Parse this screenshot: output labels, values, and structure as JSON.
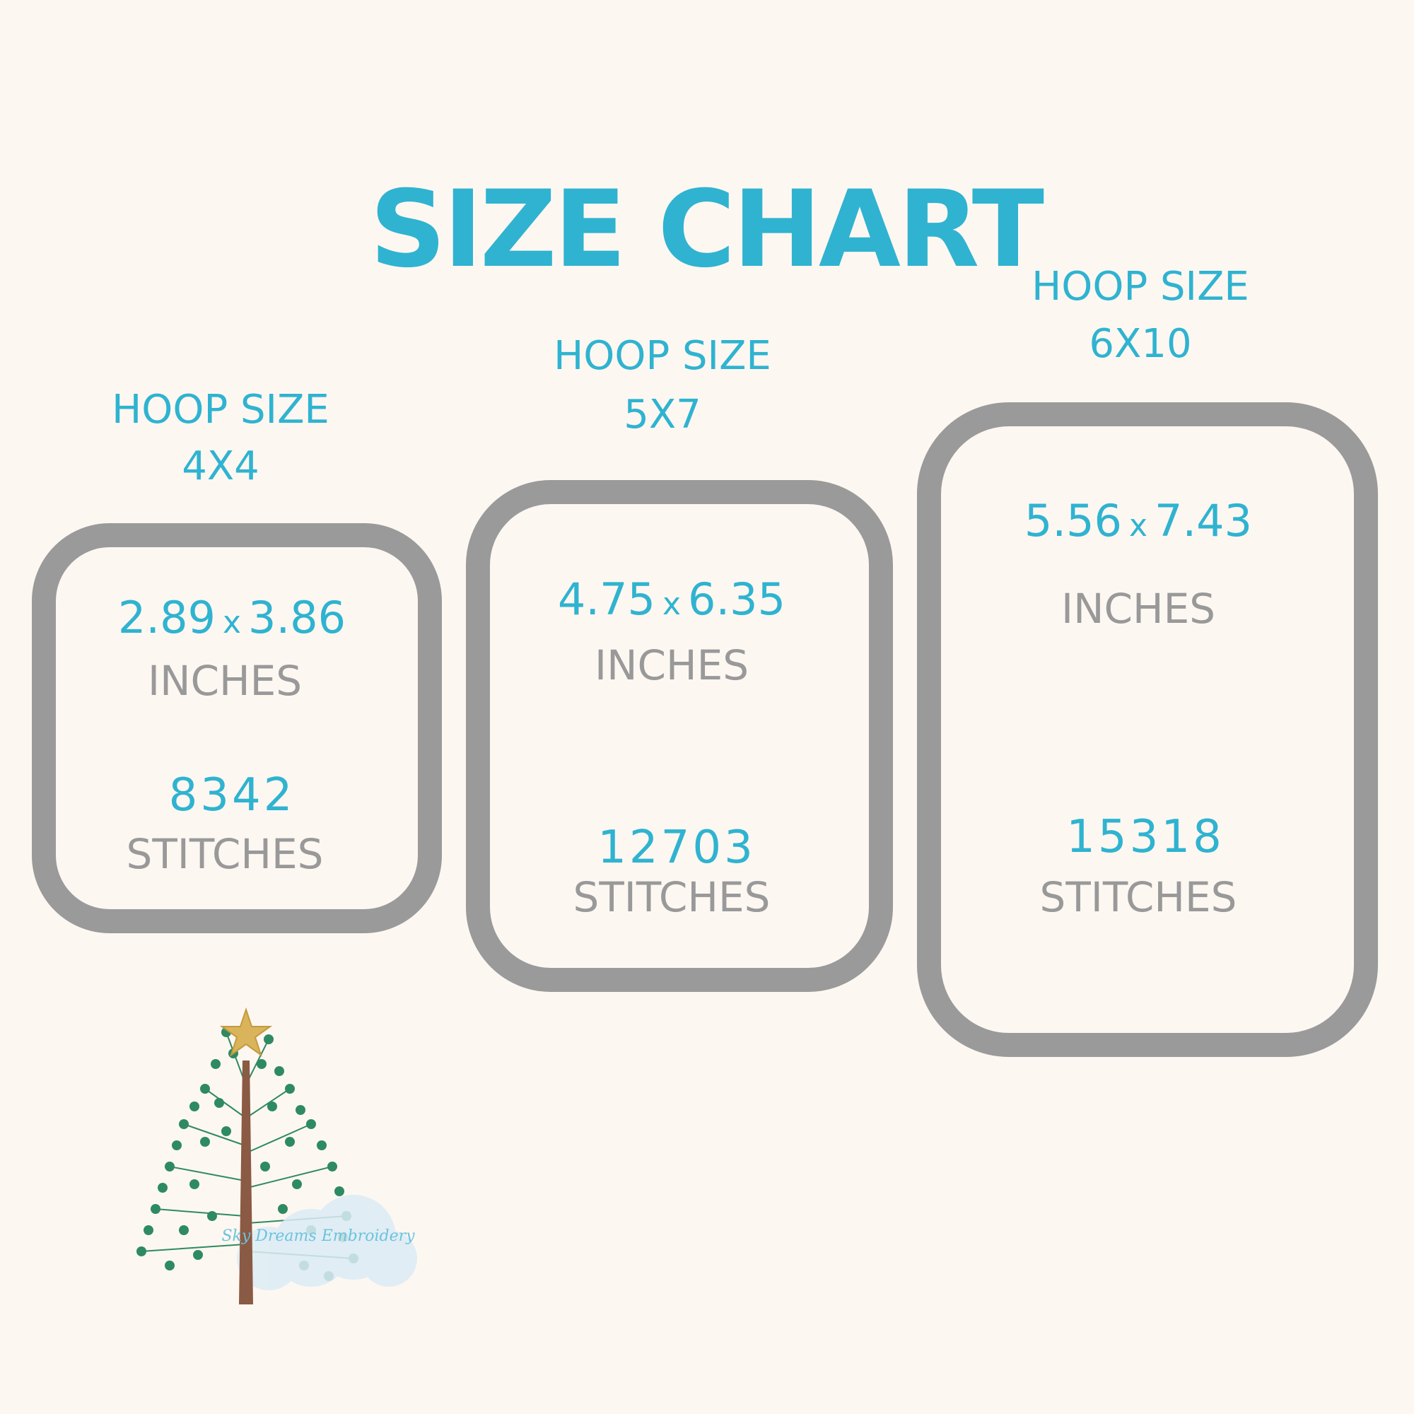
{
  "title": "SIZE CHART",
  "colors": {
    "accent": "#2fb3d0",
    "frame": "#9a9a9a",
    "background": "#fdf7f2"
  },
  "hoops": [
    {
      "label": "HOOP SIZE",
      "size": "4X4",
      "width": "2.89",
      "times": "x",
      "height": "3.86",
      "unit": "INCHES",
      "stitches": "8342",
      "stitches_label": "STITCHES"
    },
    {
      "label": "HOOP SIZE",
      "size": "5X7",
      "width": "4.75",
      "times": "x",
      "height": "6.35",
      "unit": "INCHES",
      "stitches": "12703",
      "stitches_label": "STITCHES"
    },
    {
      "label": "HOOP SIZE",
      "size": "6X10",
      "width": "5.56",
      "times": "x",
      "height": "7.43",
      "unit": "INCHES",
      "stitches": "15318",
      "stitches_label": "STITCHES"
    }
  ],
  "watermark": "Sky Dreams Embroidery"
}
